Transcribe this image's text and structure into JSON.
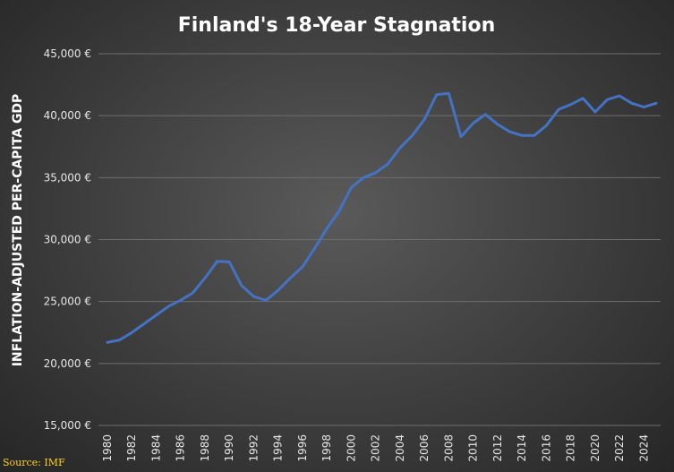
{
  "chart_data": {
    "type": "line",
    "title": "Finland's 18-Year Stagnation",
    "ylabel": "INFLATION-ADJUSTED PER-CAPITA GDP",
    "xlabel": "",
    "source": "Source: IMF",
    "ylim": [
      15000,
      45000
    ],
    "yticks": [
      15000,
      20000,
      25000,
      30000,
      35000,
      40000,
      45000
    ],
    "ytick_labels": [
      "15,000 €",
      "20,000 €",
      "25,000 €",
      "30,000 €",
      "35,000 €",
      "40,000 €",
      "45,000 €"
    ],
    "xlim": [
      1980,
      2025
    ],
    "xticks": [
      1980,
      1982,
      1984,
      1986,
      1988,
      1990,
      1992,
      1994,
      1996,
      1998,
      2000,
      2002,
      2004,
      2006,
      2008,
      2010,
      2012,
      2014,
      2016,
      2018,
      2020,
      2022,
      2024
    ],
    "xtick_labels": [
      "1980",
      "1982",
      "1984",
      "1986",
      "1988",
      "1990",
      "1992",
      "1994",
      "1996",
      "1998",
      "2000",
      "2002",
      "2004",
      "2006",
      "2008",
      "2010",
      "2012",
      "2014",
      "2016",
      "2018",
      "2020",
      "2022",
      "2024"
    ],
    "grid": true,
    "line_color": "#4472c4",
    "series": [
      {
        "x": [
          1980,
          1981,
          1982,
          1983,
          1984,
          1985,
          1986,
          1987,
          1988,
          1989,
          1990,
          1991,
          1992,
          1993,
          1994,
          1995,
          1996,
          1997,
          1998,
          1999,
          2000,
          2001,
          2002,
          2003,
          2004,
          2005,
          2006,
          2007,
          2008,
          2009,
          2010,
          2011,
          2012,
          2013,
          2014,
          2015,
          2016,
          2017,
          2018,
          2019,
          2020,
          2021,
          2022,
          2023,
          2024,
          2025
        ],
        "values": [
          21700,
          21900,
          22500,
          23200,
          23900,
          24600,
          25100,
          25700,
          26900,
          28250,
          28200,
          26300,
          25400,
          25100,
          25900,
          26900,
          27800,
          29300,
          30900,
          32300,
          34200,
          35000,
          35400,
          36100,
          37400,
          38400,
          39700,
          41700,
          41800,
          38300,
          39400,
          40100,
          39300,
          38700,
          38400,
          38400,
          39200,
          40500,
          40900,
          41400,
          40300,
          41300,
          41600,
          41000,
          40700,
          41000
        ]
      }
    ]
  }
}
